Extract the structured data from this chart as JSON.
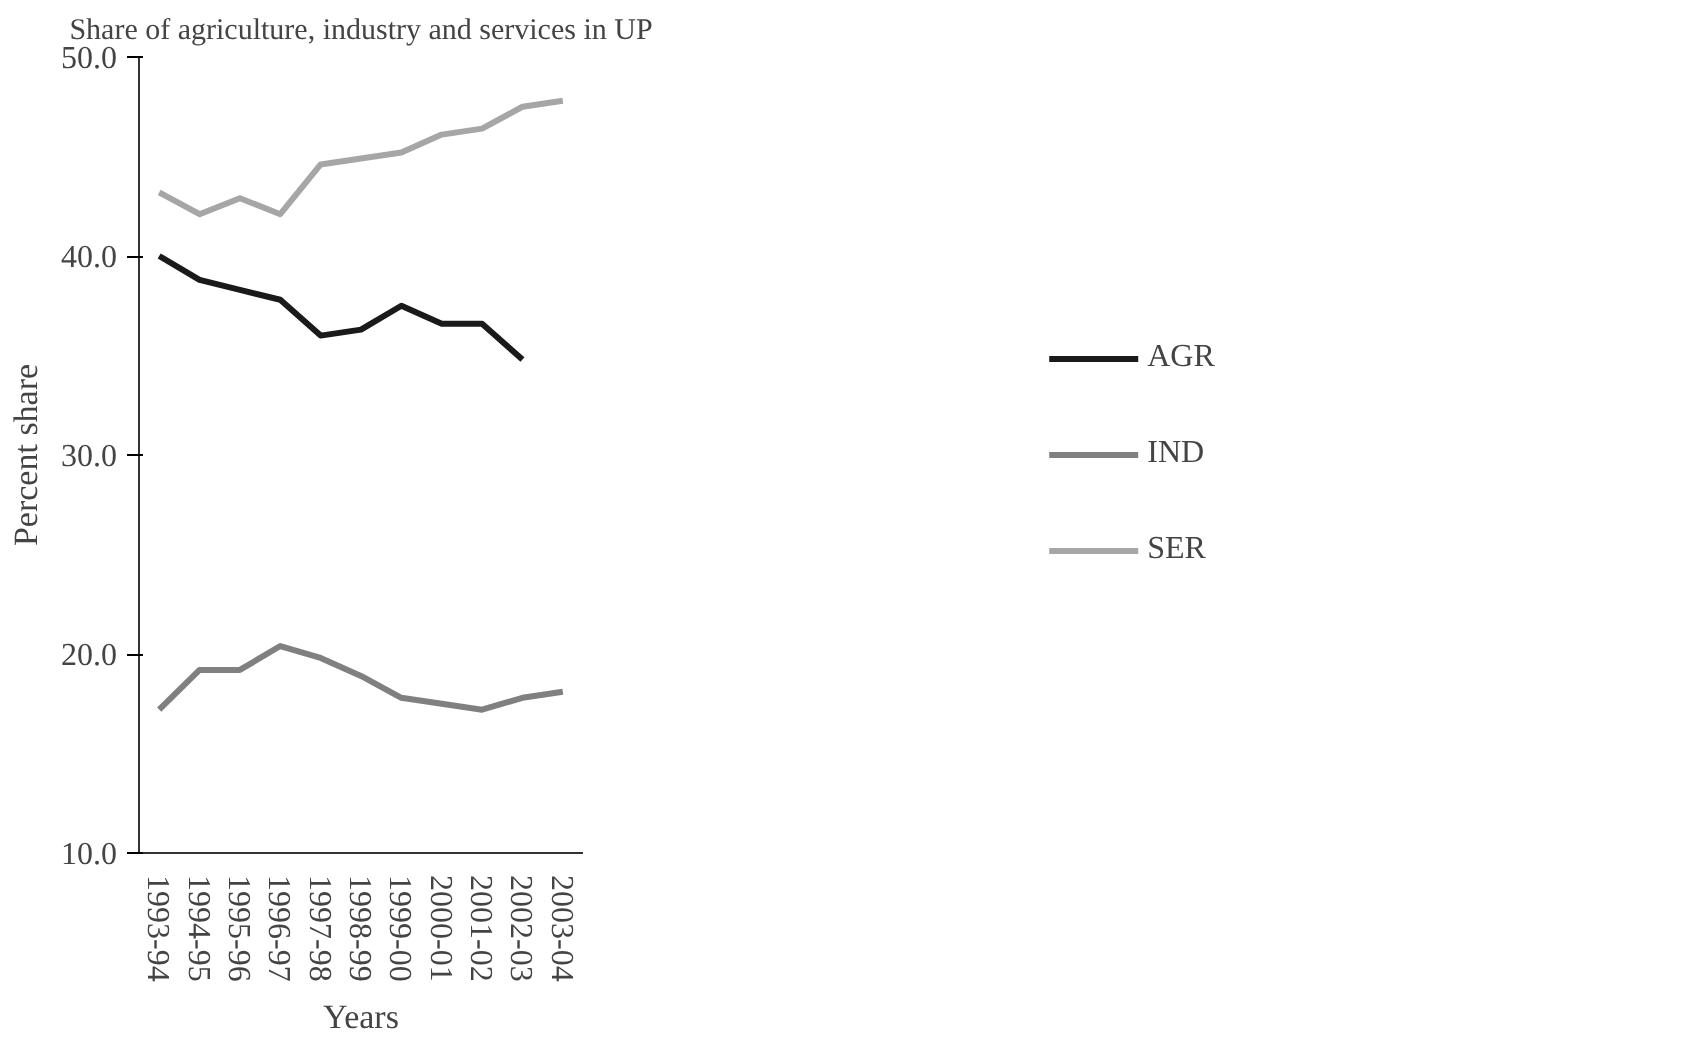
{
  "chart_data": {
    "type": "line",
    "title": "Share of agriculture, industry and services in UP",
    "xlabel": "Years",
    "ylabel": "Percent share",
    "categories": [
      "1993-94",
      "1994-95",
      "1995-96",
      "1996-97",
      "1997-98",
      "1998-99",
      "1999-00",
      "2000-01",
      "2001-02",
      "2002-03",
      "2003-04"
    ],
    "series": [
      {
        "name": "AGR",
        "color": "#1a1a1a",
        "values": [
          40.0,
          38.8,
          38.3,
          37.8,
          36.0,
          36.3,
          37.5,
          36.6,
          36.6,
          34.8,
          null
        ]
      },
      {
        "name": "IND",
        "color": "#808080",
        "values": [
          17.2,
          19.2,
          19.2,
          20.4,
          19.8,
          18.9,
          17.8,
          17.5,
          17.2,
          17.8,
          18.1
        ]
      },
      {
        "name": "SER",
        "color": "#a6a6a6",
        "values": [
          43.2,
          42.1,
          42.9,
          42.1,
          44.6,
          44.9,
          45.2,
          46.1,
          46.4,
          47.5,
          47.8
        ]
      }
    ],
    "ylim": [
      10,
      50
    ],
    "yticks": [
      {
        "value": 10,
        "label": "10.0"
      },
      {
        "value": 20,
        "label": "20.0"
      },
      {
        "value": 30,
        "label": "30.0"
      },
      {
        "value": 40,
        "label": "40.0"
      },
      {
        "value": 50,
        "label": "50.0"
      }
    ],
    "grid": false,
    "legend": "right",
    "line_style": "solid"
  }
}
